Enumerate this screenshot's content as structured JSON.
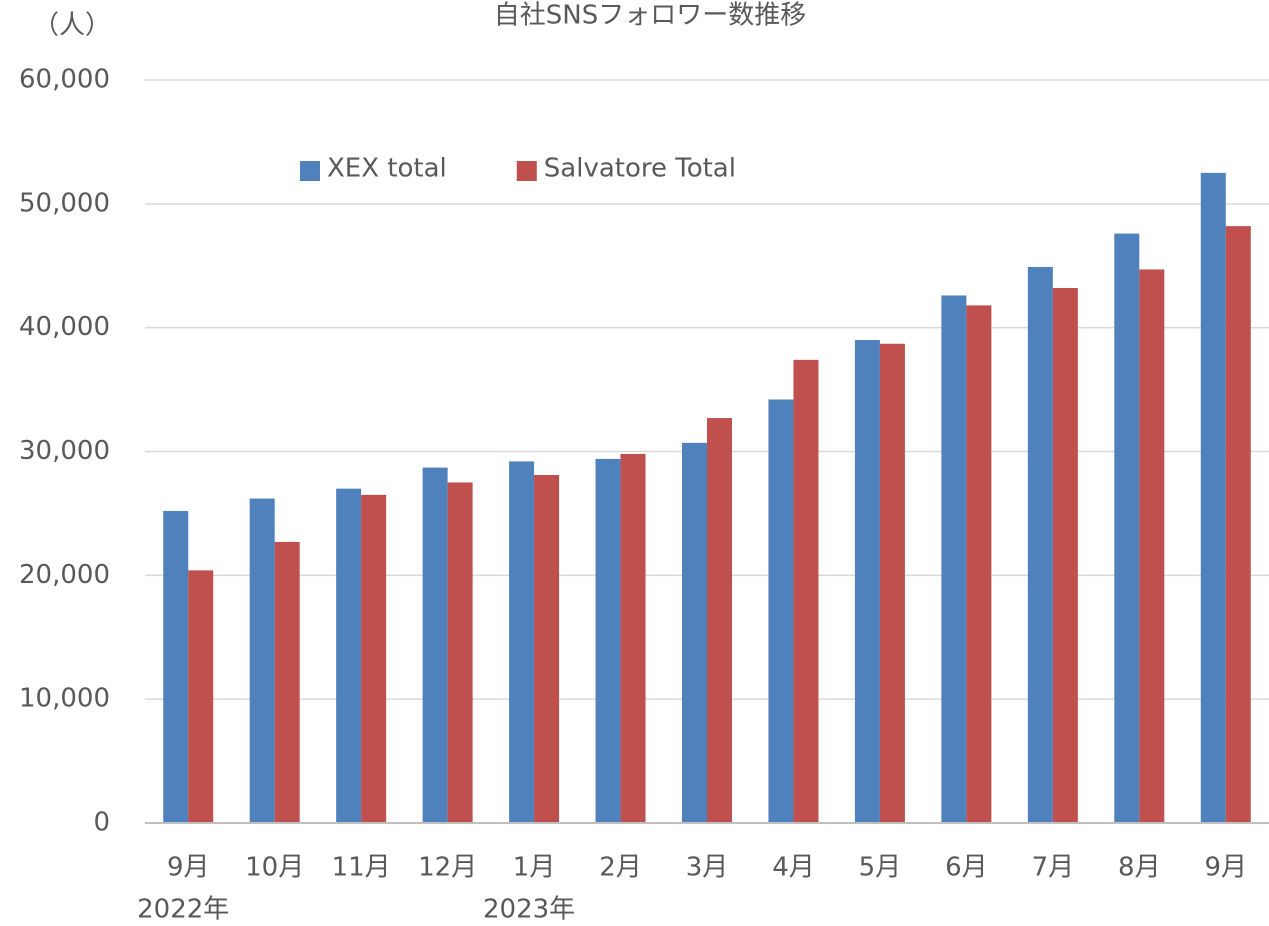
{
  "chart_data": {
    "type": "bar",
    "title": "自社SNSフォロワー数推移",
    "y_unit": "（人）",
    "categories": [
      "9月",
      "10月",
      "11月",
      "12月",
      "1月",
      "2月",
      "3月",
      "4月",
      "5月",
      "6月",
      "7月",
      "8月",
      "9月"
    ],
    "years": [
      "2022年",
      null,
      null,
      null,
      "2023年",
      null,
      null,
      null,
      null,
      null,
      null,
      null,
      null
    ],
    "series": [
      {
        "name": "XEX total",
        "color": "#4f81bd",
        "values": [
          25200,
          26200,
          27000,
          28700,
          29200,
          29400,
          30700,
          34200,
          39000,
          42600,
          44900,
          47600,
          52500
        ]
      },
      {
        "name": "Salvatore Total",
        "color": "#c0504d",
        "values": [
          20400,
          22700,
          26500,
          27500,
          28100,
          29800,
          32700,
          37400,
          38700,
          41800,
          43200,
          44700,
          48200
        ]
      }
    ],
    "ylim": [
      0,
      60000
    ],
    "yticks": [
      0,
      {
        "value": 10000,
        "label": "10,000"
      },
      {
        "value": 20000,
        "label": "20,000"
      },
      {
        "value": 30000,
        "label": "30,000"
      },
      {
        "value": 40000,
        "label": "40,000"
      },
      {
        "value": 50000,
        "label": "50,000"
      },
      {
        "value": 60000,
        "label": "60,000"
      }
    ],
    "grid": true,
    "legend": "top-left"
  }
}
